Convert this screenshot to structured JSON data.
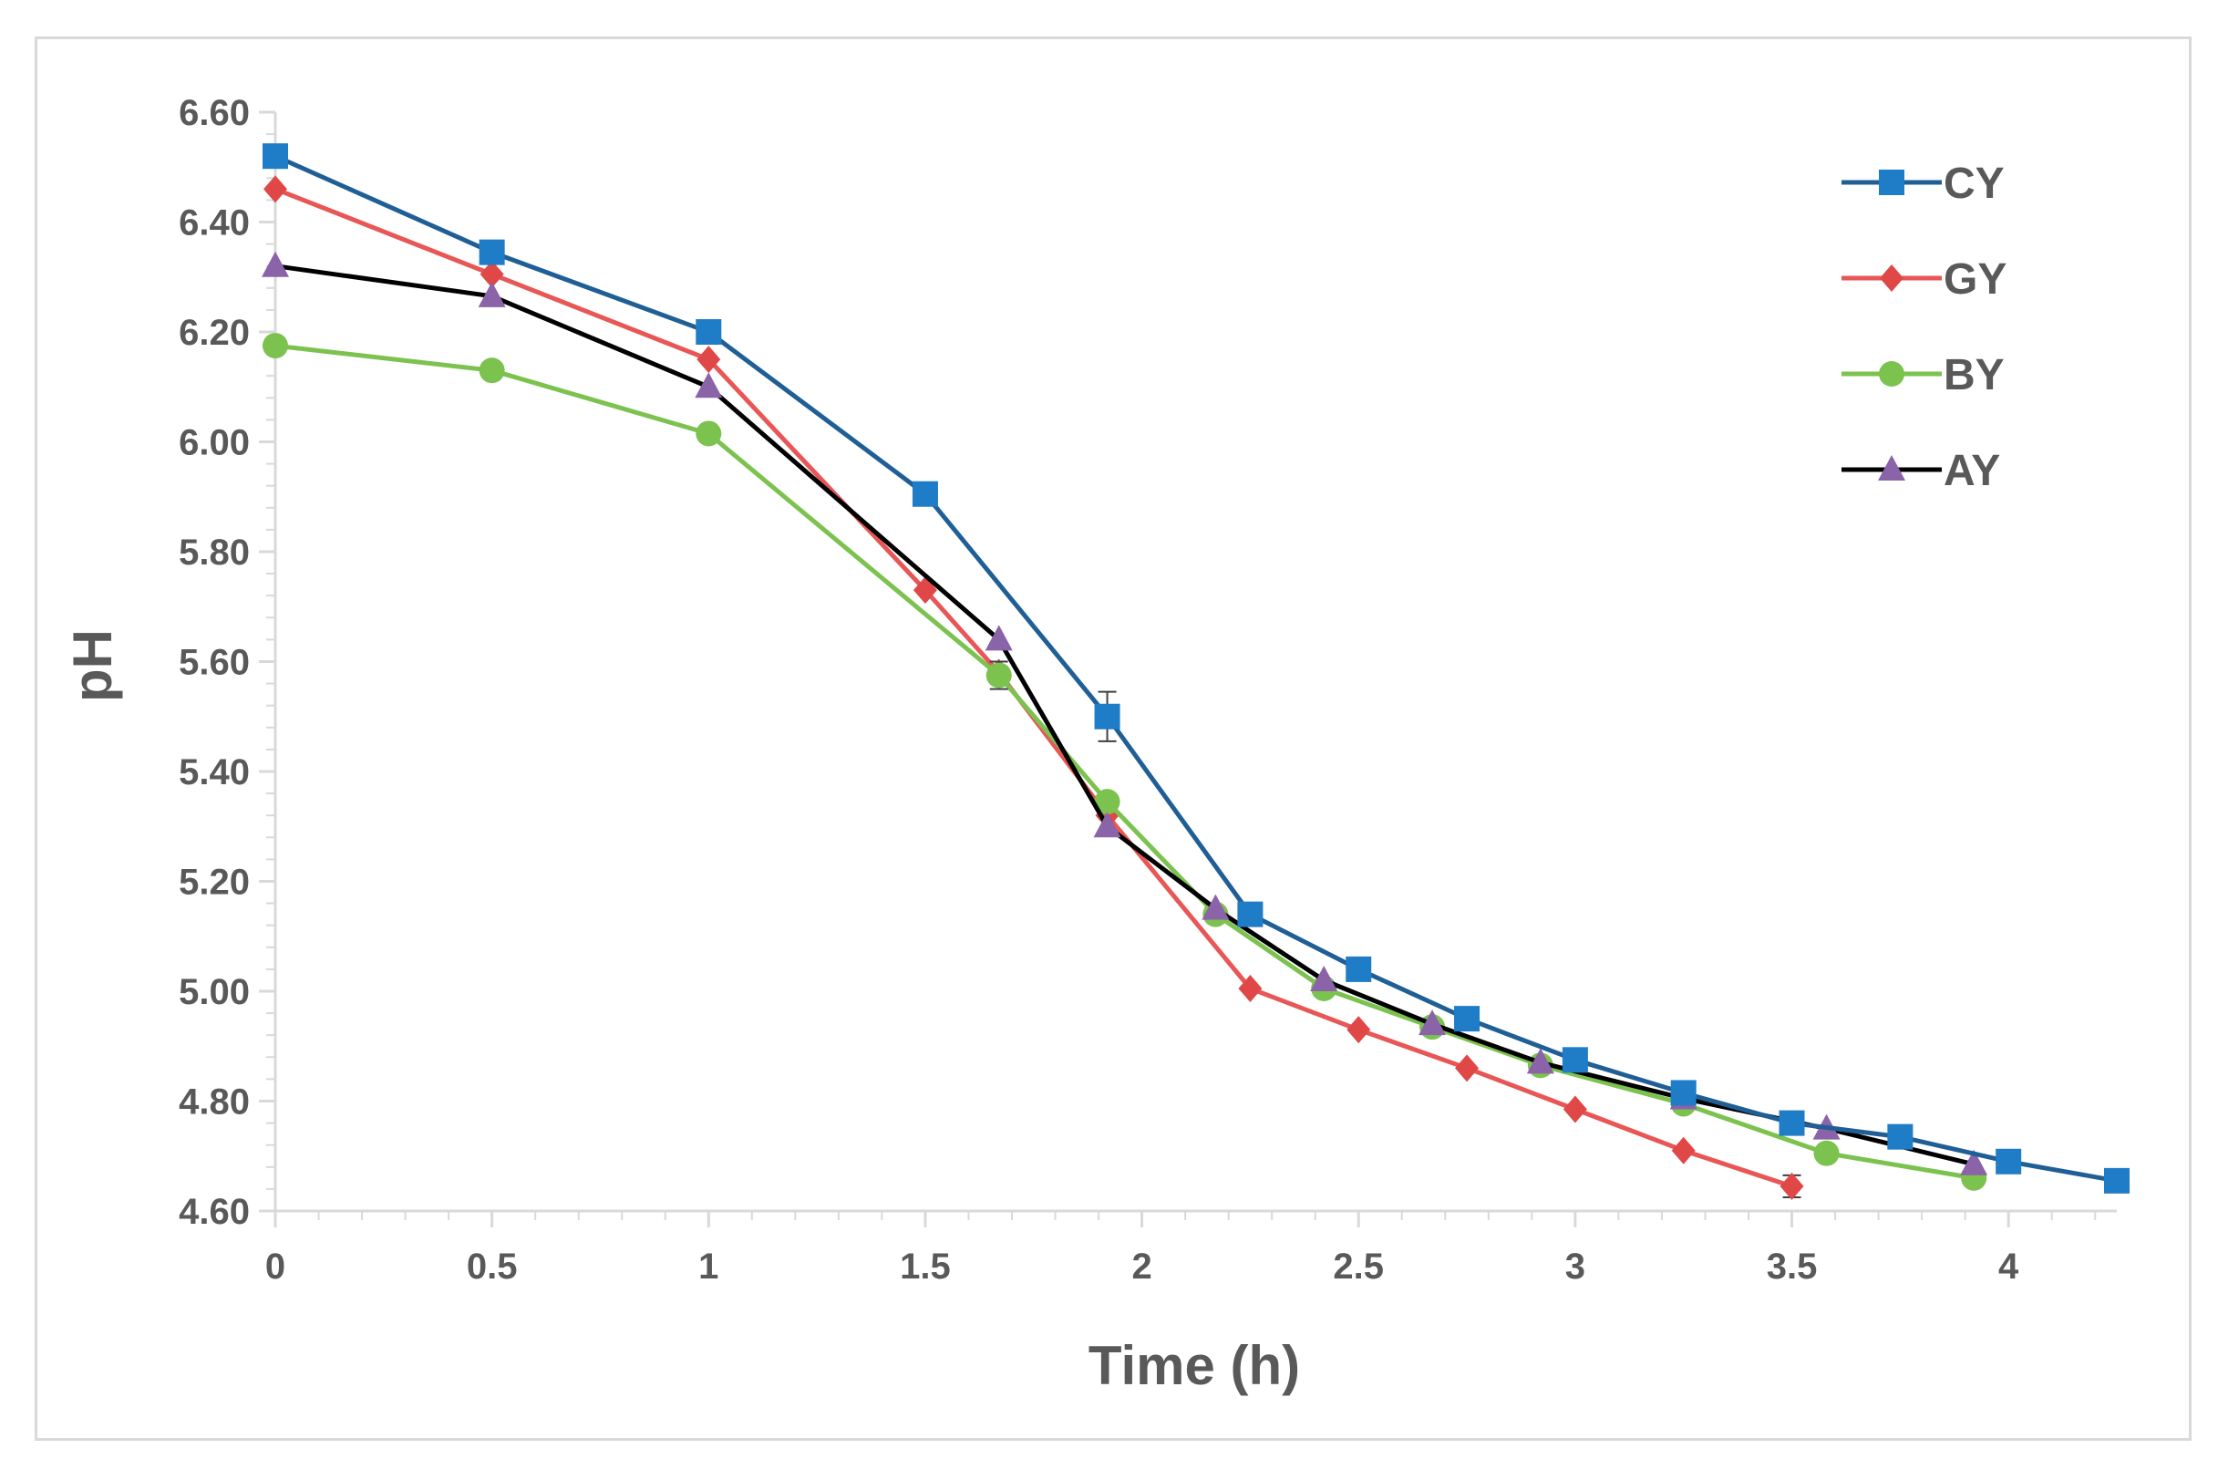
{
  "chart_data": {
    "type": "line",
    "title": "",
    "xlabel": "Time (h)",
    "ylabel": "pH",
    "xlim": [
      0,
      4.25
    ],
    "ylim": [
      4.6,
      6.6
    ],
    "x_ticks": [
      "0",
      "0.5",
      "1",
      "1.5",
      "2",
      "2.5",
      "3",
      "3.5",
      "4"
    ],
    "y_ticks": [
      "4.60",
      "4.80",
      "5.00",
      "5.20",
      "5.40",
      "5.60",
      "5.80",
      "6.00",
      "6.20",
      "6.40",
      "6.60"
    ],
    "legend_position": "top-right",
    "grid": false,
    "series": [
      {
        "name": "CY",
        "color": "#1f5f96",
        "marker": "square",
        "marker_color": "#1f7cc6",
        "points": [
          [
            0,
            6.52
          ],
          [
            0.5,
            6.345
          ],
          [
            1,
            6.2
          ],
          [
            1.5,
            5.905
          ],
          [
            1.92,
            5.5
          ],
          [
            2.25,
            5.14
          ],
          [
            2.5,
            5.04
          ],
          [
            2.75,
            4.95
          ],
          [
            3,
            4.875
          ],
          [
            3.25,
            4.815
          ],
          [
            3.5,
            4.76
          ],
          [
            3.75,
            4.735
          ],
          [
            4,
            4.69
          ],
          [
            4.25,
            4.655
          ]
        ],
        "error_bars": [
          [
            1.92,
            0.045
          ]
        ]
      },
      {
        "name": "GY",
        "color": "#e85656",
        "marker": "diamond",
        "marker_color": "#e04848",
        "points": [
          [
            0,
            6.46
          ],
          [
            0.5,
            6.305
          ],
          [
            1,
            6.15
          ],
          [
            1.5,
            5.73
          ],
          [
            1.67,
            5.58
          ],
          [
            1.92,
            5.32
          ],
          [
            2.25,
            5.005
          ],
          [
            2.5,
            4.93
          ],
          [
            2.75,
            4.86
          ],
          [
            3,
            4.785
          ],
          [
            3.25,
            4.71
          ],
          [
            3.5,
            4.645
          ]
        ],
        "error_bars": [
          [
            3.5,
            0.02
          ]
        ]
      },
      {
        "name": "BY",
        "color": "#7cc24f",
        "marker": "circle",
        "marker_color": "#7cc24f",
        "points": [
          [
            0,
            6.175
          ],
          [
            0.5,
            6.13
          ],
          [
            1,
            6.015
          ],
          [
            1.67,
            5.575
          ],
          [
            1.92,
            5.345
          ],
          [
            2.17,
            5.14
          ],
          [
            2.42,
            5.005
          ],
          [
            2.67,
            4.935
          ],
          [
            2.92,
            4.865
          ],
          [
            3.25,
            4.795
          ],
          [
            3.58,
            4.705
          ],
          [
            3.92,
            4.66
          ]
        ],
        "error_bars": [
          [
            1.67,
            0.025
          ]
        ]
      },
      {
        "name": "AY",
        "color": "#000000",
        "marker": "triangle",
        "marker_color": "#8a63a8",
        "points": [
          [
            0,
            6.32
          ],
          [
            0.5,
            6.265
          ],
          [
            1,
            6.1
          ],
          [
            1.67,
            5.64
          ],
          [
            1.92,
            5.3
          ],
          [
            2.17,
            5.15
          ],
          [
            2.42,
            5.02
          ],
          [
            2.67,
            4.94
          ],
          [
            2.92,
            4.87
          ],
          [
            3.25,
            4.805
          ],
          [
            3.58,
            4.75
          ],
          [
            3.92,
            4.685
          ]
        ],
        "error_bars": []
      }
    ]
  }
}
